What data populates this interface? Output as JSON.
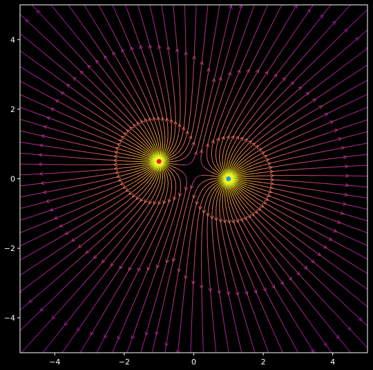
{
  "chart_data": {
    "type": "streamplot",
    "title": "",
    "xlabel": "",
    "ylabel": "",
    "xlim": [
      -5,
      5
    ],
    "ylim": [
      -5,
      5
    ],
    "x_ticks": [
      -4,
      -2,
      0,
      2,
      4
    ],
    "y_ticks": [
      -4,
      -2,
      0,
      2,
      4
    ],
    "x_tick_labels": [
      "−4",
      "−2",
      "0",
      "2",
      "4"
    ],
    "y_tick_labels": [
      "−4",
      "−2",
      "0",
      "2",
      "4"
    ],
    "grid": false,
    "colormap": "plasma",
    "background": "#000000",
    "axes_color": "#ffffff",
    "points": [
      {
        "x": -1,
        "y": 0.5,
        "color": "#e0242b"
      },
      {
        "x": 1,
        "y": 0,
        "color": "#1f9bd9"
      }
    ]
  }
}
